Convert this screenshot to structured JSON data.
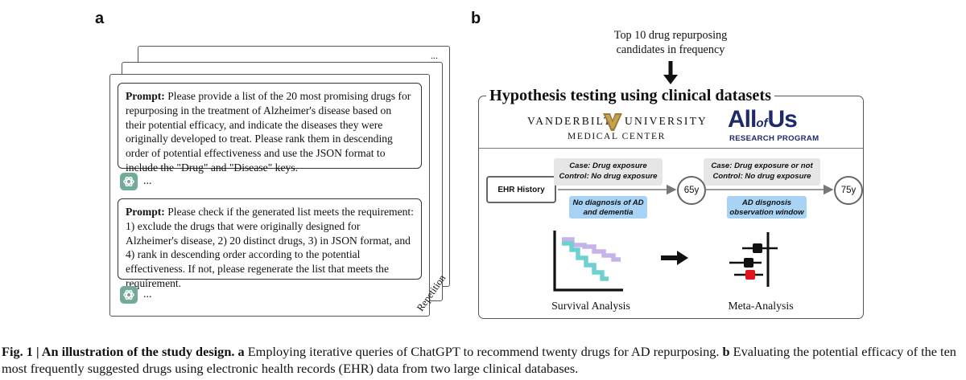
{
  "panel_a": {
    "letter": "a",
    "prompt1": {
      "label": "Prompt:",
      "text": " Please provide a list of the 20 most promising drugs for repurposing in the treatment of Alzheimer's disease based on their potential efficacy, and indicate the diseases they were originally developed to treat. Please rank them in descending order of potential effectiveness and use the JSON format to include the \"Drug\" and \"Disease\" keys."
    },
    "prompt2": {
      "label": "Prompt:",
      "text": " Please check if the generated list meets the requirement: 1) exclude the drugs that were originally designed for Alzheimer's disease, 2) 20 distinct drugs, 3) in JSON format, and 4) rank in descending order according to the potential effectiveness. If not, please regenerate the list that meets the requirement."
    },
    "ellipsis": "...",
    "stack_dots": "...",
    "repetition_label": "Repetition",
    "icons": [
      "chatgpt-icon"
    ]
  },
  "panel_b": {
    "letter": "b",
    "top_text_line1": "Top 10 drug repurposing",
    "top_text_line2": "candidates in frequency",
    "box_title": "Hypothesis testing using clinical datasets",
    "vanderbilt_left": "VANDERBILT",
    "vanderbilt_right": "UNIVERSITY",
    "vanderbilt_sub": "MEDICAL CENTER",
    "allofus_all": "All",
    "allofus_of": "of",
    "allofus_us": "Us",
    "allofus_sub": "RESEARCH PROGRAM",
    "ehr_label": "EHR History",
    "grey1_line1": "Case: Drug exposure",
    "grey1_line2": "Control: No drug exposure",
    "grey2_line1": "Case: Drug exposure or not",
    "grey2_line2": "Control: No drug exposure",
    "blue1_line1": "No diagnosis of AD",
    "blue1_line2": "and dementia",
    "blue2_line1": "AD disgnosis",
    "blue2_line2": "observation window",
    "age1": "65y",
    "age2": "75y",
    "survival_label": "Survival Analysis",
    "meta_label": "Meta-Analysis",
    "colors": {
      "vanderbilt_gold": "#9c7c38",
      "allofus_navy": "#1f2a6b",
      "purple": "#c6b3ea",
      "teal": "#6fd0d0",
      "blue_box": "#a9d3f5",
      "red": "#e0141e"
    }
  },
  "caption": {
    "fig": "Fig. 1 | An illustration of the study design.",
    "a_letter": "a",
    "a_text": " Employing iterative queries of ChatGPT to recommend twenty drugs for AD repurposing.",
    "b_letter": "b",
    "b_text": " Evaluating the potential efficacy of the ten most frequently suggested drugs using electronic health records (EHR) data from two large clinical databases."
  }
}
